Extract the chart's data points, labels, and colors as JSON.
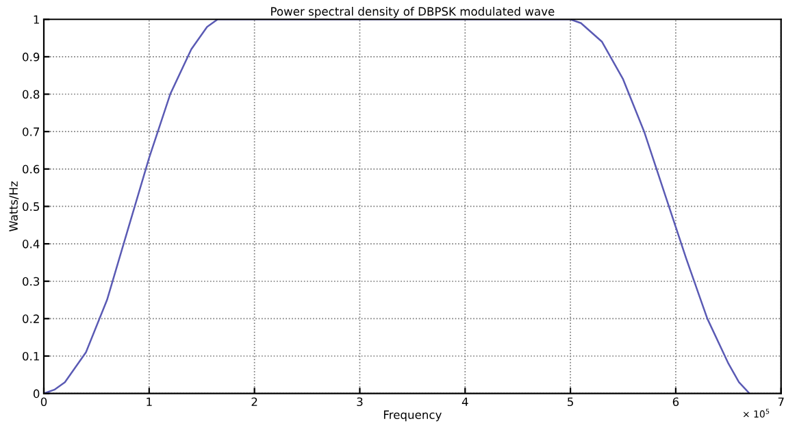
{
  "chart_data": {
    "type": "line",
    "title": "Power spectral density of DBPSK modulated wave",
    "xlabel": "Frequency",
    "ylabel": "Watts/Hz",
    "annotations": [
      "× 10$^{5}$"
    ],
    "series": [
      {
        "color": "#5a5ab4",
        "x": [
          0,
          0.1,
          0.2,
          0.4,
          0.6,
          0.8,
          1.0,
          1.2,
          1.4,
          1.55,
          1.65,
          5.0,
          5.1,
          5.3,
          5.5,
          5.7,
          5.9,
          6.1,
          6.3,
          6.5,
          6.6,
          6.7
        ],
        "values": [
          0,
          0.01,
          0.03,
          0.11,
          0.25,
          0.44,
          0.63,
          0.8,
          0.92,
          0.98,
          1.0,
          1.0,
          0.99,
          0.94,
          0.84,
          0.7,
          0.53,
          0.36,
          0.2,
          0.08,
          0.03,
          0
        ]
      }
    ],
    "xlim": [
      0,
      7
    ],
    "xticks": [
      0,
      1,
      2,
      3,
      4,
      5,
      6,
      7
    ],
    "ylim": [
      0,
      1
    ],
    "yticks": [
      0,
      0.1,
      0.2,
      0.3,
      0.4,
      0.5,
      0.6,
      0.7,
      0.8,
      0.9,
      1
    ],
    "grid": true,
    "line_style": "solid",
    "legend": false
  }
}
